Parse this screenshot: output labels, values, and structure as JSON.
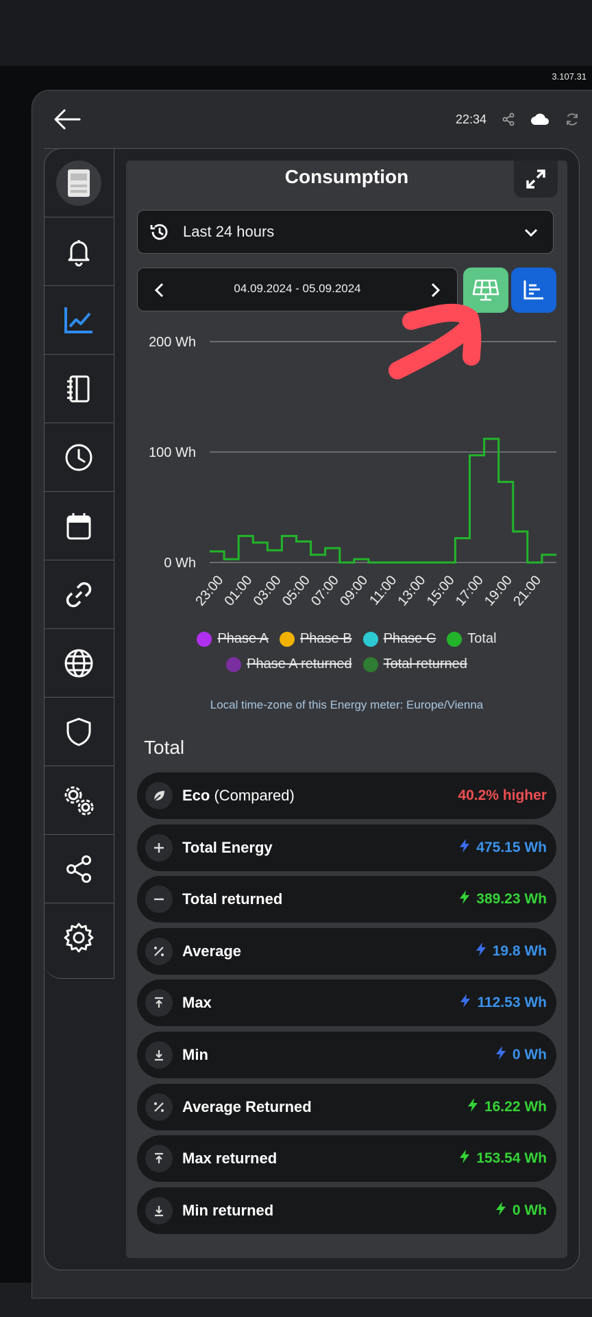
{
  "app": {
    "version": "3.107.31",
    "time": "22:34"
  },
  "panel": {
    "title": "Consumption"
  },
  "range": {
    "selected": "Last 24 hours"
  },
  "date_nav": {
    "range": "04.09.2024 - 05.09.2024"
  },
  "chart_data": {
    "type": "line",
    "ylabel": "",
    "yticks": [
      "200 Wh",
      "100 Wh",
      "0 Wh"
    ],
    "ylim": [
      0,
      200
    ],
    "x": [
      "23:00",
      "00:00",
      "01:00",
      "02:00",
      "03:00",
      "04:00",
      "05:00",
      "06:00",
      "07:00",
      "08:00",
      "09:00",
      "10:00",
      "11:00",
      "12:00",
      "13:00",
      "14:00",
      "15:00",
      "16:00",
      "17:00",
      "18:00",
      "19:00",
      "20:00",
      "21:00",
      "22:00"
    ],
    "xtick_labels": [
      "23:00",
      "01:00",
      "03:00",
      "05:00",
      "07:00",
      "09:00",
      "11:00",
      "13:00",
      "15:00",
      "17:00",
      "19:00",
      "21:00"
    ],
    "series": [
      {
        "name": "Total",
        "color": "#22b52a",
        "values": [
          10,
          3,
          24,
          18,
          11,
          24,
          19,
          7,
          13,
          0,
          3,
          0,
          0,
          0,
          0,
          0,
          0,
          22,
          97,
          112,
          73,
          28,
          0,
          7
        ]
      }
    ],
    "grid": true,
    "legend": [
      {
        "label": "Phase A",
        "color": "#b030f0",
        "hidden": true
      },
      {
        "label": "Phase B",
        "color": "#f1b200",
        "hidden": true
      },
      {
        "label": "Phase C",
        "color": "#2cc9d3",
        "hidden": true
      },
      {
        "label": "Total",
        "color": "#24b42a",
        "hidden": false
      },
      {
        "label": "Phase A returned",
        "color": "#7a2fa0",
        "hidden": true
      },
      {
        "label": "Total returned",
        "color": "#2e7d32",
        "hidden": true
      }
    ]
  },
  "timezone_note": "Local time-zone of this Energy meter: Europe/Vienna",
  "totals": {
    "title": "Total",
    "items": [
      {
        "icon": "leaf-icon",
        "label": "Eco",
        "sub": "(Compared)",
        "value": "40.2% higher",
        "color": "red",
        "bolt": false
      },
      {
        "icon": "plus-icon",
        "label": "Total Energy",
        "sub": "",
        "value": "475.15 Wh",
        "color": "blue",
        "bolt": true
      },
      {
        "icon": "minus-icon",
        "label": "Total returned",
        "sub": "",
        "value": "389.23 Wh",
        "color": "green",
        "bolt": true
      },
      {
        "icon": "percent-icon",
        "label": "Average",
        "sub": "",
        "value": "19.8 Wh",
        "color": "blue",
        "bolt": true
      },
      {
        "icon": "arrow-up-bar-icon",
        "label": "Max",
        "sub": "",
        "value": "112.53 Wh",
        "color": "blue",
        "bolt": true
      },
      {
        "icon": "arrow-down-bar-icon",
        "label": "Min",
        "sub": "",
        "value": "0 Wh",
        "color": "blue",
        "bolt": true
      },
      {
        "icon": "percent-icon",
        "label": "Average Returned",
        "sub": "",
        "value": "16.22 Wh",
        "color": "green",
        "bolt": true
      },
      {
        "icon": "arrow-up-bar-icon",
        "label": "Max returned",
        "sub": "",
        "value": "153.54 Wh",
        "color": "green",
        "bolt": true
      },
      {
        "icon": "arrow-down-bar-icon",
        "label": "Min returned",
        "sub": "",
        "value": "0 Wh",
        "color": "green",
        "bolt": true
      }
    ]
  }
}
